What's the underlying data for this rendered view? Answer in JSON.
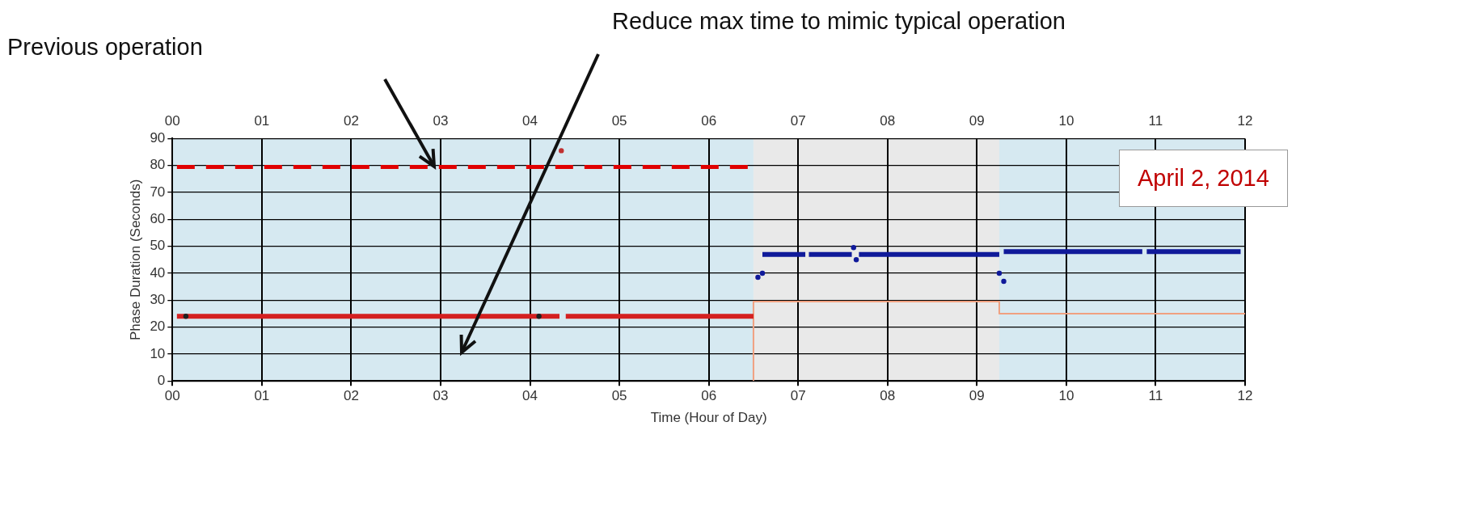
{
  "chart_data": {
    "type": "line",
    "xlabel": "Time (Hour of Day)",
    "ylabel": "Phase Duration (Seconds)",
    "xlim": [
      0,
      12
    ],
    "x2lim": [
      0,
      12
    ],
    "xticks": [
      {
        "value": 0,
        "label": "00"
      },
      {
        "value": 1,
        "label": "01"
      },
      {
        "value": 2,
        "label": "02"
      },
      {
        "value": 3,
        "label": "03"
      },
      {
        "value": 4,
        "label": "04"
      },
      {
        "value": 5,
        "label": "05"
      },
      {
        "value": 6,
        "label": "06"
      },
      {
        "value": 7,
        "label": "07"
      },
      {
        "value": 8,
        "label": "08"
      },
      {
        "value": 9,
        "label": "09"
      },
      {
        "value": 10,
        "label": "10"
      },
      {
        "value": 11,
        "label": "11"
      },
      {
        "value": 12,
        "label": "12"
      }
    ],
    "x2ticks": [
      {
        "value": 0,
        "label": "00"
      },
      {
        "value": 1,
        "label": "01"
      },
      {
        "value": 2,
        "label": "02"
      },
      {
        "value": 3,
        "label": "03"
      },
      {
        "value": 4,
        "label": "04"
      },
      {
        "value": 5,
        "label": "05"
      },
      {
        "value": 6,
        "label": "06"
      },
      {
        "value": 7,
        "label": "07"
      },
      {
        "value": 8,
        "label": "08"
      },
      {
        "value": 9,
        "label": "09"
      },
      {
        "value": 10,
        "label": "10"
      },
      {
        "value": 11,
        "label": "11"
      },
      {
        "value": 12,
        "label": "12"
      }
    ],
    "ylim": [
      0,
      90
    ],
    "yticks": [
      0,
      10,
      20,
      30,
      40,
      50,
      60,
      70,
      80,
      90
    ],
    "grid": true,
    "legend": false,
    "bands": [
      {
        "axis": "x",
        "from": 0,
        "to": 6.5,
        "color": "#d6e9f1"
      },
      {
        "axis": "x",
        "from": 6.5,
        "to": 9.25,
        "color": "#e9e9e9"
      },
      {
        "axis": "x",
        "from": 9.25,
        "to": 12,
        "color": "#d6e9f1"
      }
    ],
    "series": [
      {
        "type": "line",
        "color": "#e00000",
        "line_style": "dashed",
        "marker": "none",
        "x": [
          0.05,
          6.45
        ],
        "values": [
          79.5,
          79.5
        ]
      },
      {
        "type": "line",
        "color": "#d42020",
        "line_style": "solid",
        "marker": "none",
        "x": [
          0.05,
          4.33,
          4.37,
          4.4,
          6.5
        ],
        "values": [
          24,
          24,
          null,
          24,
          24
        ]
      },
      {
        "type": "line",
        "color": "#101a9a",
        "line_style": "solid",
        "marker": "none",
        "x": [
          6.6,
          7.08,
          7.1,
          7.12,
          7.6,
          7.64,
          7.68,
          9.25,
          9.27,
          9.3,
          10.85,
          10.87,
          10.9,
          11.95
        ],
        "values": [
          47,
          47,
          null,
          47,
          47,
          null,
          47,
          47,
          null,
          48,
          48,
          null,
          48,
          48
        ]
      },
      {
        "type": "scatter",
        "color": "#101a9a",
        "marker": "circle",
        "x": [
          6.55,
          6.6,
          7.62,
          7.65,
          9.25,
          9.3
        ],
        "values": [
          38.5,
          40,
          49.5,
          45,
          40,
          37
        ]
      },
      {
        "type": "scatter",
        "color": "#c03030",
        "marker": "circle",
        "x": [
          4.35
        ],
        "values": [
          85.5
        ]
      },
      {
        "type": "scatter",
        "color": "#202020",
        "marker": "circle",
        "x": [
          0.15,
          4.1
        ],
        "values": [
          24,
          24
        ]
      },
      {
        "type": "line",
        "color": "#f0a080",
        "line_style": "solid",
        "marker": "none",
        "x": [
          6.5,
          6.5,
          9.25,
          9.25,
          12
        ],
        "values": [
          0,
          29.5,
          29.5,
          25,
          25
        ]
      }
    ],
    "annotations": [
      "Previous operation",
      "Reduce max time to mimic typical operation",
      "April 2, 2014"
    ]
  }
}
